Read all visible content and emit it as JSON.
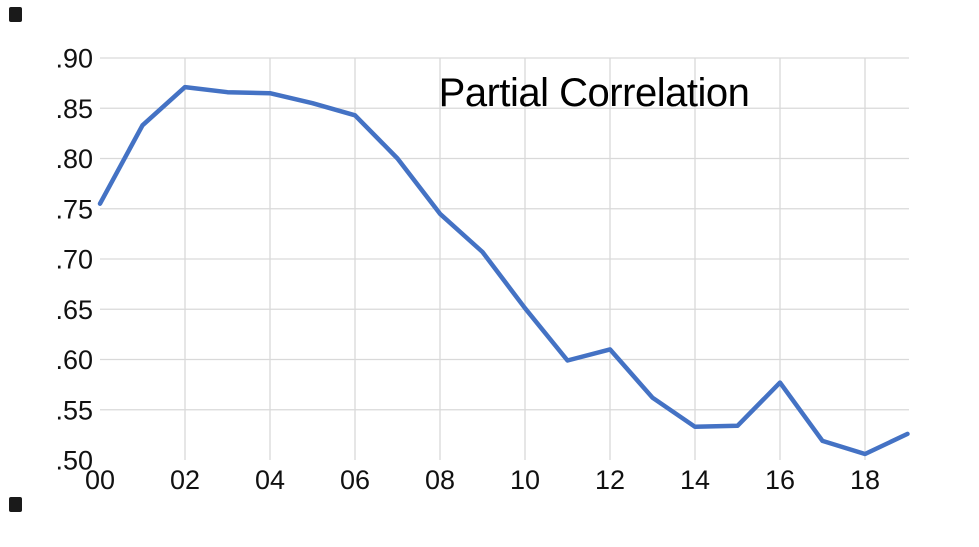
{
  "chart_data": {
    "type": "line",
    "title": "Partial Correlation",
    "x": [
      "00",
      "01",
      "02",
      "03",
      "04",
      "05",
      "06",
      "07",
      "08",
      "09",
      "10",
      "11",
      "12",
      "13",
      "14",
      "15",
      "16",
      "17",
      "18",
      "19"
    ],
    "values": [
      0.755,
      0.833,
      0.871,
      0.866,
      0.865,
      0.855,
      0.843,
      0.8,
      0.745,
      0.707,
      0.651,
      0.599,
      0.61,
      0.562,
      0.533,
      0.534,
      0.577,
      0.519,
      0.506,
      0.526
    ],
    "x_tick_labels": [
      "00",
      "02",
      "04",
      "06",
      "08",
      "10",
      "12",
      "14",
      "16",
      "18"
    ],
    "y_tick_labels": [
      ".90",
      ".85",
      ".80",
      ".75",
      ".70",
      ".65",
      ".60",
      ".55",
      ".50"
    ],
    "y_tick_values": [
      0.9,
      0.85,
      0.8,
      0.75,
      0.7,
      0.65,
      0.6,
      0.55,
      0.5
    ],
    "ylim": [
      0.5,
      0.9
    ],
    "xlabel": "",
    "ylabel": "",
    "legend": "none",
    "grid": "on",
    "grid_note": "horizontal gridlines at .55 through .90 only; vertical gridlines at even years 02 through 18; no axis frame lines",
    "colors": {
      "line": "#4472C4",
      "grid": "#D9D9D9",
      "labels": "#111111",
      "title": "#000000",
      "background": "#ffffff",
      "corner_mark": "#1a1a1a"
    }
  }
}
